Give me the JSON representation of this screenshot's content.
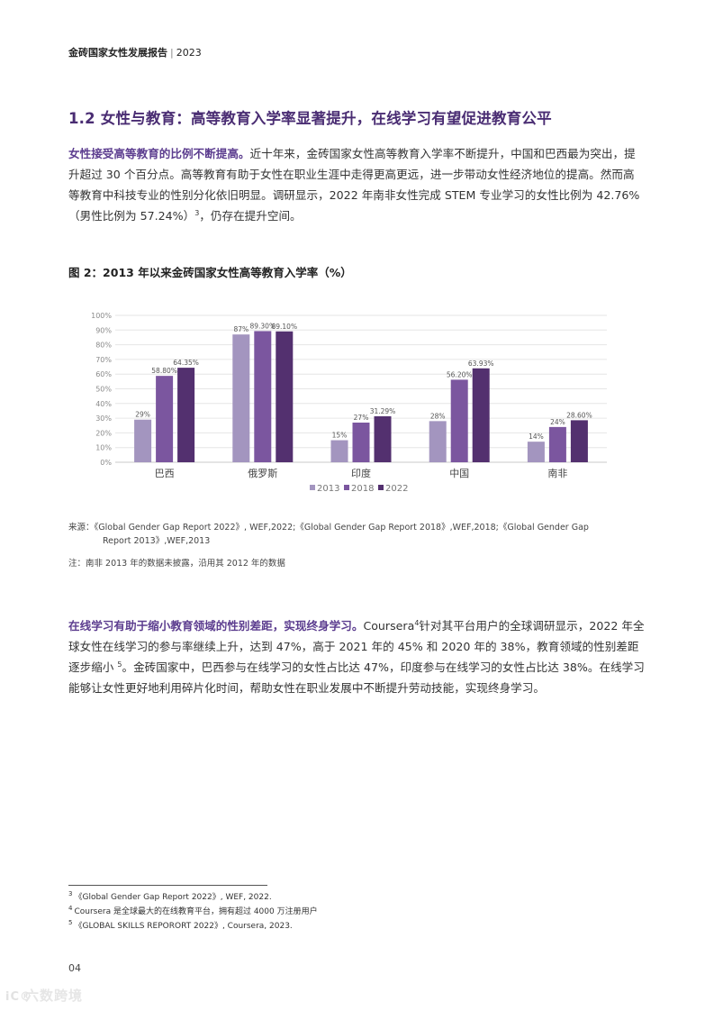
{
  "header": {
    "brand": "金砖国家女性发展报告",
    "separator": "|",
    "year": "2023"
  },
  "section": {
    "title": "1.2 女性与教育：高等教育入学率显著提升，在线学习有望促进教育公平"
  },
  "para1": {
    "lead": "女性接受高等教育的比例不断提高。",
    "text": "近十年来，金砖国家女性高等教育入学率不断提升，中国和巴西最为突出，提升超过 30 个百分点。高等教育有助于女性在职业生涯中走得更高更远，进一步带动女性经济地位的提高。然而高等教育中科技专业的性别分化依旧明显。调研显示，2022 年南非女性完成 STEM 专业学习的女性比例为 42.76%（男性比例为 57.24%）",
    "ref": "3",
    "tail": "，仍存在提升空间。"
  },
  "figure": {
    "title": "图 2：2013 年以来金砖国家女性高等教育入学率（%）"
  },
  "chart_data": {
    "type": "bar",
    "title": "图 2：2013 年以来金砖国家女性高等教育入学率（%）",
    "categories": [
      "巴西",
      "俄罗斯",
      "印度",
      "中国",
      "南非"
    ],
    "series": [
      {
        "name": "2013",
        "color": "#a395bf",
        "values": [
          29,
          87,
          15,
          28,
          14
        ],
        "labels": [
          "29%",
          "87%",
          "15%",
          "28%",
          "14%"
        ]
      },
      {
        "name": "2018",
        "color": "#7b569f",
        "values": [
          58.8,
          89.3,
          27,
          56.2,
          24
        ],
        "labels": [
          "58.80%",
          "89.30%",
          "27%",
          "56.20%",
          "24%"
        ]
      },
      {
        "name": "2022",
        "color": "#53306f",
        "values": [
          64.35,
          89.1,
          31.29,
          63.93,
          28.6
        ],
        "labels": [
          "64.35%",
          "89.10%",
          "31.29%",
          "63.93%",
          "28.60%"
        ]
      }
    ],
    "yticks": [
      "0%",
      "10%",
      "20%",
      "30%",
      "40%",
      "50%",
      "60%",
      "70%",
      "80%",
      "90%",
      "100%"
    ],
    "ylim": [
      0,
      100
    ],
    "grid": true,
    "legend_position": "bottom"
  },
  "source": {
    "line1": "来源：《Global Gender Gap Report 2022》, WEF,2022;《Global Gender Gap Report 2018》,WEF,2018;《Global Gender Gap",
    "line2": "Report 2013》,WEF,2013"
  },
  "remark": "注：南非 2013 年的数据未披露，沿用其 2012 年的数据",
  "para2": {
    "lead": "在线学习有助于缩小教育领域的性别差距，实现终身学习。",
    "pre": "Coursera",
    "ref1": "4",
    "mid": "针对其平台用户的全球调研显示，2022 年全球女性在线学习的参与率继续上升，达到 47%，高于 2021 年的 45% 和 2020 年的 38%，教育领域的性别差距逐步缩小",
    "ref2": "5",
    "tail": "。金砖国家中，巴西参与在线学习的女性占比达 47%，印度参与在线学习的女性占比达 38%。在线学习能够让女性更好地利用碎片化时间，帮助女性在职业发展中不断提升劳动技能，实现终身学习。"
  },
  "footnotes": [
    {
      "num": "3",
      "text": "《Global Gender Gap Report 2022》, WEF, 2022."
    },
    {
      "num": "4",
      "text": "Coursera 是全球最大的在线教育平台，拥有超过 4000 万注册用户"
    },
    {
      "num": "5",
      "text": "《GLOBAL SKILLS REPORORT 2022》, Coursera, 2023."
    }
  ],
  "page_number": "04",
  "watermark": {
    "icon": "iC®",
    "text": "六数跨境"
  }
}
